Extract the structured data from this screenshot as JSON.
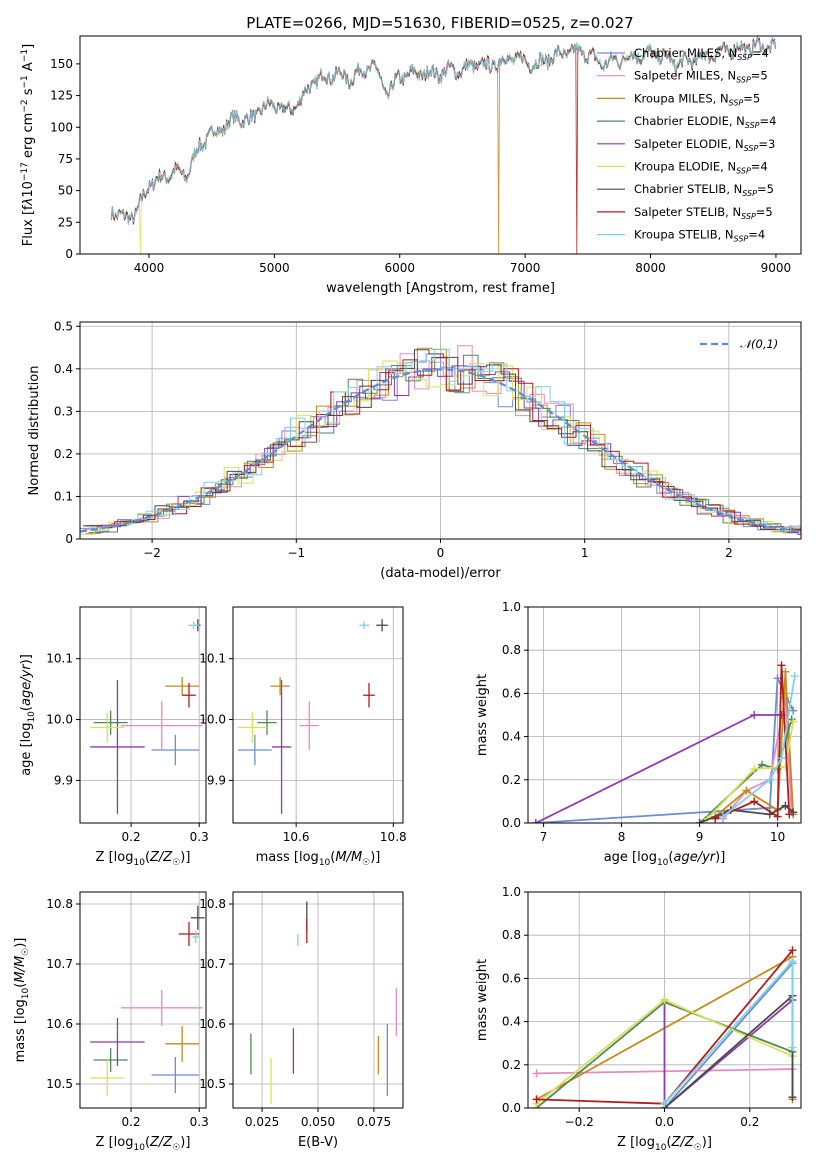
{
  "figure_title": "PLATE=0266, MJD=51630, FIBERID=0525, z=0.027",
  "series_legend": [
    {
      "name": "Chabrier MILES, N_SSP=4",
      "color": "#6b8ed6"
    },
    {
      "name": "Salpeter MILES, N_SSP=5",
      "color": "#e58ac6"
    },
    {
      "name": "Kroupa MILES, N_SSP=5",
      "color": "#c68a1a"
    },
    {
      "name": "Chabrier ELODIE, N_SSP=4",
      "color": "#4f8a55"
    },
    {
      "name": "Salpeter ELODIE, N_SSP=3",
      "color": "#8e3bb0"
    },
    {
      "name": "Kroupa ELODIE, N_SSP=4",
      "color": "#d8e05a"
    },
    {
      "name": "Chabrier STELIB, N_SSP=5",
      "color": "#4a4a4a"
    },
    {
      "name": "Salpeter STELIB, N_SSP=5",
      "color": "#b01c1c"
    },
    {
      "name": "Kroupa STELIB, N_SSP=4",
      "color": "#7fd3e6"
    }
  ],
  "chart_data": [
    {
      "id": "spectrum",
      "type": "line",
      "title": "PLATE=0266, MJD=51630, FIBERID=0525, z=0.027",
      "xlabel": "wavelength [Angstrom, rest frame]",
      "ylabel": "Flux [f_λ 10^-17 erg cm^-2 s^-1 A^-1]",
      "xlim": [
        3450,
        9200
      ],
      "ylim": [
        0,
        172
      ],
      "xticks": [
        4000,
        5000,
        6000,
        7000,
        8000,
        9000
      ],
      "yticks": [
        0,
        25,
        50,
        75,
        100,
        125,
        150
      ],
      "grid": false,
      "legend": "top-right",
      "x": [
        3700,
        3800,
        3900,
        4000,
        4100,
        4200,
        4300,
        4400,
        4500,
        4600,
        4700,
        4800,
        4900,
        5000,
        5100,
        5200,
        5300,
        5400,
        5500,
        5600,
        5700,
        5800,
        5900,
        6000,
        6100,
        6200,
        6300,
        6400,
        6500,
        6600,
        6700,
        6800,
        6900,
        7000,
        7100,
        7200,
        7300,
        7400,
        7500,
        7600,
        7700,
        7800,
        7900,
        8000,
        8100,
        8200,
        8300,
        8400,
        8500,
        8600,
        8700,
        8800,
        8900,
        9000
      ],
      "y": [
        35,
        28,
        32,
        55,
        60,
        65,
        62,
        85,
        95,
        100,
        108,
        105,
        115,
        118,
        112,
        120,
        135,
        140,
        142,
        138,
        145,
        148,
        125,
        140,
        142,
        143,
        142,
        145,
        145,
        150,
        148,
        152,
        155,
        152,
        150,
        155,
        158,
        160,
        158,
        150,
        152,
        155,
        157,
        158,
        156,
        150,
        152,
        155,
        158,
        160,
        162,
        163,
        164,
        163
      ],
      "dips": [
        {
          "x": 3930,
          "y": 0,
          "series": "Kroupa ELODIE, N_SSP=4"
        },
        {
          "x": 6790,
          "y": 0,
          "series": "Kroupa MILES, N_SSP=5"
        },
        {
          "x": 7410,
          "y": 0,
          "series": "Salpeter STELIB, N_SSP=5"
        }
      ]
    },
    {
      "id": "residuals",
      "type": "line",
      "xlabel": "(data-model)/error",
      "ylabel": "Normed distribution",
      "xlim": [
        -2.5,
        2.5
      ],
      "ylim": [
        0,
        0.51
      ],
      "xticks": [
        -2,
        -1,
        0,
        1,
        2
      ],
      "yticks": [
        0.0,
        0.1,
        0.2,
        0.3,
        0.4,
        0.5
      ],
      "grid": true,
      "legend": "top-right",
      "reference": {
        "name": "𝒩(0,1)",
        "color": "#5b8ed6",
        "style": "dashed"
      },
      "bin_width": 0.1
    },
    {
      "id": "age_vs_Z",
      "type": "scatter",
      "xlabel": "Z [log10(Z/Z☉)]",
      "ylabel": "age  [log10(age/yr)]",
      "xlim": [
        0.125,
        0.31
      ],
      "ylim": [
        9.83,
        10.185
      ],
      "xticks": [
        0.2,
        0.3
      ],
      "yticks": [
        9.9,
        10.0,
        10.1
      ],
      "grid": true,
      "points": [
        {
          "series": "Chabrier MILES, N_SSP=4",
          "x": 0.265,
          "y": 9.95,
          "xerr": 0.035,
          "yerr": 0.025
        },
        {
          "series": "Salpeter MILES, N_SSP=5",
          "x": 0.245,
          "y": 9.99,
          "xerr": 0.06,
          "yerr": 0.04
        },
        {
          "series": "Kroupa MILES, N_SSP=5",
          "x": 0.275,
          "y": 10.055,
          "xerr": 0.025,
          "yerr": 0.015
        },
        {
          "series": "Chabrier ELODIE, N_SSP=4",
          "x": 0.17,
          "y": 9.995,
          "xerr": 0.025,
          "yerr": 0.02
        },
        {
          "series": "Salpeter ELODIE, N_SSP=3",
          "x": 0.18,
          "y": 9.955,
          "xerr": 0.04,
          "yerr": 0.11
        },
        {
          "series": "Kroupa ELODIE, N_SSP=4",
          "x": 0.165,
          "y": 9.987,
          "xerr": 0.025,
          "yerr": 0.025
        },
        {
          "series": "Chabrier STELIB, N_SSP=5",
          "x": 0.298,
          "y": 10.155,
          "xerr": 0.004,
          "yerr": 0.01
        },
        {
          "series": "Salpeter STELIB, N_SSP=5",
          "x": 0.285,
          "y": 10.04,
          "xerr": 0.01,
          "yerr": 0.02
        },
        {
          "series": "Kroupa STELIB, N_SSP=4",
          "x": 0.292,
          "y": 10.155,
          "xerr": 0.008,
          "yerr": 0.006
        }
      ]
    },
    {
      "id": "age_vs_mass",
      "type": "scatter",
      "xlabel": "mass [log10(M/M☉)]",
      "ylabel": "",
      "xlim": [
        10.47,
        10.82
      ],
      "ylim": [
        9.83,
        10.185
      ],
      "xticks": [
        10.6,
        10.8
      ],
      "yticks": [
        9.9,
        10.0,
        10.1
      ],
      "grid": true,
      "points": [
        {
          "series": "Chabrier MILES, N_SSP=4",
          "x": 10.515,
          "y": 9.95,
          "xerr": 0.035,
          "yerr": 0.025
        },
        {
          "series": "Salpeter MILES, N_SSP=5",
          "x": 10.627,
          "y": 9.99,
          "xerr": 0.02,
          "yerr": 0.04
        },
        {
          "series": "Kroupa MILES, N_SSP=5",
          "x": 10.567,
          "y": 10.055,
          "xerr": 0.02,
          "yerr": 0.015
        },
        {
          "series": "Chabrier ELODIE, N_SSP=4",
          "x": 10.54,
          "y": 9.995,
          "xerr": 0.02,
          "yerr": 0.02
        },
        {
          "series": "Salpeter ELODIE, N_SSP=3",
          "x": 10.57,
          "y": 9.955,
          "xerr": 0.02,
          "yerr": 0.11
        },
        {
          "series": "Kroupa ELODIE, N_SSP=4",
          "x": 10.51,
          "y": 9.987,
          "xerr": 0.03,
          "yerr": 0.025
        },
        {
          "series": "Chabrier STELIB, N_SSP=5",
          "x": 10.777,
          "y": 10.155,
          "xerr": 0.012,
          "yerr": 0.01
        },
        {
          "series": "Salpeter STELIB, N_SSP=5",
          "x": 10.75,
          "y": 10.04,
          "xerr": 0.012,
          "yerr": 0.02
        },
        {
          "series": "Kroupa STELIB, N_SSP=4",
          "x": 10.74,
          "y": 10.155,
          "xerr": 0.01,
          "yerr": 0.006
        }
      ]
    },
    {
      "id": "weight_vs_age",
      "type": "line",
      "xlabel": "age  [log10(age/yr)]",
      "ylabel": "mass weight",
      "xlim": [
        6.8,
        10.3
      ],
      "ylim": [
        0,
        1.0
      ],
      "xticks": [
        7,
        8,
        9,
        10
      ],
      "yticks": [
        0.0,
        0.2,
        0.4,
        0.6,
        0.8,
        1.0
      ],
      "grid": true,
      "series": [
        {
          "name": "Chabrier MILES, N_SSP=4",
          "x": [
            6.9,
            9.9,
            10.0,
            10.2
          ],
          "y": [
            0.0,
            0.07,
            0.67,
            0.52
          ]
        },
        {
          "name": "Salpeter MILES, N_SSP=5",
          "x": [
            9.3,
            9.6,
            9.9,
            10.1,
            10.18
          ],
          "y": [
            0.02,
            0.15,
            0.2,
            0.58,
            0.05
          ]
        },
        {
          "name": "Kroupa MILES, N_SSP=5",
          "x": [
            9.2,
            9.6,
            10.0,
            10.1,
            10.2
          ],
          "y": [
            0.03,
            0.15,
            0.06,
            0.7,
            0.04
          ]
        },
        {
          "name": "Chabrier ELODIE, N_SSP=4",
          "x": [
            9.0,
            9.8,
            10.0,
            10.18
          ],
          "y": [
            0.0,
            0.27,
            0.25,
            0.48
          ]
        },
        {
          "name": "Salpeter ELODIE, N_SSP=3",
          "x": [
            6.9,
            9.7,
            10.05
          ],
          "y": [
            0.0,
            0.5,
            0.5
          ]
        },
        {
          "name": "Kroupa ELODIE, N_SSP=4",
          "x": [
            9.1,
            9.7,
            10.1,
            10.2
          ],
          "y": [
            0.02,
            0.25,
            0.26,
            0.47
          ]
        },
        {
          "name": "Chabrier STELIB, N_SSP=5",
          "x": [
            9.0,
            9.4,
            9.9,
            10.1,
            10.2
          ],
          "y": [
            0.0,
            0.06,
            0.04,
            0.08,
            0.05
          ]
        },
        {
          "name": "Salpeter STELIB, N_SSP=5",
          "x": [
            9.2,
            9.7,
            10.0,
            10.05,
            10.15
          ],
          "y": [
            0.02,
            0.1,
            0.03,
            0.73,
            0.04
          ]
        },
        {
          "name": "Kroupa STELIB, N_SSP=4",
          "x": [
            9.3,
            9.9,
            10.05,
            10.22
          ],
          "y": [
            0.03,
            0.2,
            0.3,
            0.68
          ]
        }
      ]
    },
    {
      "id": "mass_vs_Z",
      "type": "scatter",
      "xlabel": "Z [log10(Z/Z☉)]",
      "ylabel": "mass [log10(M/M☉)]",
      "xlim": [
        0.125,
        0.31
      ],
      "ylim": [
        10.46,
        10.82
      ],
      "xticks": [
        0.2,
        0.3
      ],
      "yticks": [
        10.5,
        10.6,
        10.7,
        10.8
      ],
      "grid": true,
      "points": [
        {
          "series": "Chabrier MILES, N_SSP=4",
          "x": 0.265,
          "y": 10.515,
          "xerr": 0.035,
          "yerr": 0.03
        },
        {
          "series": "Salpeter MILES, N_SSP=5",
          "x": 0.245,
          "y": 10.627,
          "xerr": 0.06,
          "yerr": 0.03
        },
        {
          "series": "Kroupa MILES, N_SSP=5",
          "x": 0.275,
          "y": 10.567,
          "xerr": 0.025,
          "yerr": 0.03
        },
        {
          "series": "Chabrier ELODIE, N_SSP=4",
          "x": 0.17,
          "y": 10.54,
          "xerr": 0.025,
          "yerr": 0.02
        },
        {
          "series": "Salpeter ELODIE, N_SSP=3",
          "x": 0.18,
          "y": 10.57,
          "xerr": 0.04,
          "yerr": 0.04
        },
        {
          "series": "Kroupa ELODIE, N_SSP=4",
          "x": 0.165,
          "y": 10.51,
          "xerr": 0.025,
          "yerr": 0.03
        },
        {
          "series": "Chabrier STELIB, N_SSP=5",
          "x": 0.298,
          "y": 10.777,
          "xerr": 0.01,
          "yerr": 0.02
        },
        {
          "series": "Salpeter STELIB, N_SSP=5",
          "x": 0.285,
          "y": 10.75,
          "xerr": 0.015,
          "yerr": 0.02
        },
        {
          "series": "Kroupa STELIB, N_SSP=4",
          "x": 0.295,
          "y": 10.745,
          "xerr": 0.005,
          "yerr": 0.01
        }
      ]
    },
    {
      "id": "mass_vs_EBV",
      "type": "scatter",
      "xlabel": "E(B-V)",
      "ylabel": "",
      "xlim": [
        0.012,
        0.088
      ],
      "ylim": [
        10.46,
        10.82
      ],
      "xticks": [
        0.025,
        0.05,
        0.075
      ],
      "yticks": [
        10.5,
        10.6,
        10.7,
        10.8
      ],
      "grid": true,
      "points": [
        {
          "series": "Chabrier MILES, N_SSP=4",
          "x": 0.081,
          "y": 10.54,
          "xerr": 0.0,
          "yerr": 0.06
        },
        {
          "series": "Salpeter MILES, N_SSP=5",
          "x": 0.085,
          "y": 10.62,
          "xerr": 0.0,
          "yerr": 0.04
        },
        {
          "series": "Kroupa MILES, N_SSP=5",
          "x": 0.077,
          "y": 10.548,
          "xerr": 0.0,
          "yerr": 0.032
        },
        {
          "series": "Chabrier ELODIE, N_SSP=4",
          "x": 0.02,
          "y": 10.55,
          "xerr": 0.0,
          "yerr": 0.034
        },
        {
          "series": "Salpeter ELODIE, N_SSP=3",
          "x": 0.039,
          "y": 10.555,
          "xerr": 0.0,
          "yerr": 0.038
        },
        {
          "series": "Kroupa ELODIE, N_SSP=4",
          "x": 0.029,
          "y": 10.505,
          "xerr": 0.0,
          "yerr": 0.038
        },
        {
          "series": "Chabrier STELIB, N_SSP=5",
          "x": 0.045,
          "y": 10.78,
          "xerr": 0.0,
          "yerr": 0.024
        },
        {
          "series": "Salpeter STELIB, N_SSP=5",
          "x": 0.045,
          "y": 10.755,
          "xerr": 0.0,
          "yerr": 0.02
        },
        {
          "series": "Kroupa STELIB, N_SSP=4",
          "x": 0.041,
          "y": 10.74,
          "xerr": 0.0,
          "yerr": 0.01
        }
      ]
    },
    {
      "id": "weight_vs_Z",
      "type": "line",
      "xlabel": "Z [log10(Z/Z☉)]",
      "ylabel": "mass weight",
      "xlim": [
        -0.32,
        0.32
      ],
      "ylim": [
        0,
        1.0
      ],
      "xticks": [
        -0.2,
        0.0,
        0.2
      ],
      "yticks": [
        0.0,
        0.2,
        0.4,
        0.6,
        0.8,
        1.0
      ],
      "grid": true,
      "series": [
        {
          "name": "Chabrier MILES, N_SSP=4",
          "x": [
            0.0,
            0.3,
            0.3
          ],
          "y": [
            0.0,
            0.67,
            0.52
          ]
        },
        {
          "name": "Salpeter MILES, N_SSP=5",
          "x": [
            -0.3,
            0.3,
            0.3
          ],
          "y": [
            0.16,
            0.18,
            0.05
          ]
        },
        {
          "name": "Kroupa MILES, N_SSP=5",
          "x": [
            -0.3,
            0.3,
            0.3
          ],
          "y": [
            0.04,
            0.7,
            0.04
          ]
        },
        {
          "name": "Chabrier ELODIE, N_SSP=4",
          "x": [
            -0.3,
            0.0,
            0.3
          ],
          "y": [
            0.0,
            0.49,
            0.26
          ]
        },
        {
          "name": "Salpeter ELODIE, N_SSP=3",
          "x": [
            0.0,
            0.0,
            0.3
          ],
          "y": [
            0.5,
            0.0,
            0.5
          ]
        },
        {
          "name": "Kroupa ELODIE, N_SSP=4",
          "x": [
            -0.3,
            0.0,
            0.3
          ],
          "y": [
            0.02,
            0.5,
            0.24
          ]
        },
        {
          "name": "Chabrier STELIB, N_SSP=5",
          "x": [
            0.0,
            0.3,
            0.3
          ],
          "y": [
            0.0,
            0.52,
            0.05
          ]
        },
        {
          "name": "Salpeter STELIB, N_SSP=5",
          "x": [
            -0.3,
            0.0,
            0.3
          ],
          "y": [
            0.04,
            0.02,
            0.73
          ]
        },
        {
          "name": "Kroupa STELIB, N_SSP=4",
          "x": [
            0.0,
            0.3,
            0.3
          ],
          "y": [
            0.02,
            0.68,
            0.28
          ]
        }
      ]
    }
  ]
}
